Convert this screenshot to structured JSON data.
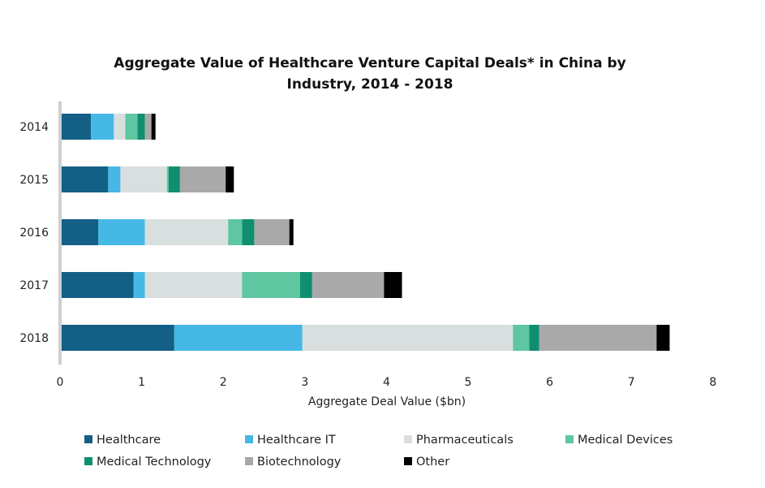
{
  "chart_data": {
    "type": "bar",
    "orientation": "horizontal",
    "stacked": true,
    "title_lines": [
      "Aggregate Value of Healthcare Venture Capital Deals* in China by",
      "Industry, 2014 - 2018"
    ],
    "xlabel": "Aggregate Deal Value ($bn)",
    "ylabel": "",
    "xlim": [
      0,
      8
    ],
    "xticks": [
      "0",
      "1",
      "2",
      "3",
      "4",
      "5",
      "6",
      "7",
      "8"
    ],
    "categories": [
      "2014",
      "2015",
      "2016",
      "2017",
      "2018"
    ],
    "series": [
      {
        "name": "Healthcare",
        "color": "#135f85",
        "values": [
          0.36,
          0.57,
          0.45,
          0.88,
          1.38
        ]
      },
      {
        "name": "Healthcare IT",
        "color": "#45b8e6",
        "values": [
          0.28,
          0.15,
          0.57,
          0.14,
          1.57
        ]
      },
      {
        "name": "Pharmaceuticals",
        "color": "#d9dfdf",
        "values": [
          0.14,
          0.57,
          1.02,
          1.19,
          2.58
        ]
      },
      {
        "name": "Medical Devices",
        "color": "#5ec6a0",
        "values": [
          0.15,
          0.02,
          0.17,
          0.71,
          0.2
        ]
      },
      {
        "name": "Medical Technology",
        "color": "#0f8f70",
        "values": [
          0.09,
          0.14,
          0.15,
          0.15,
          0.12
        ]
      },
      {
        "name": "Biotechnology",
        "color": "#a9a9a9",
        "values": [
          0.08,
          0.56,
          0.43,
          0.88,
          1.44
        ]
      },
      {
        "name": "Other",
        "color": "#000000",
        "values": [
          0.05,
          0.1,
          0.05,
          0.22,
          0.16
        ]
      }
    ]
  }
}
